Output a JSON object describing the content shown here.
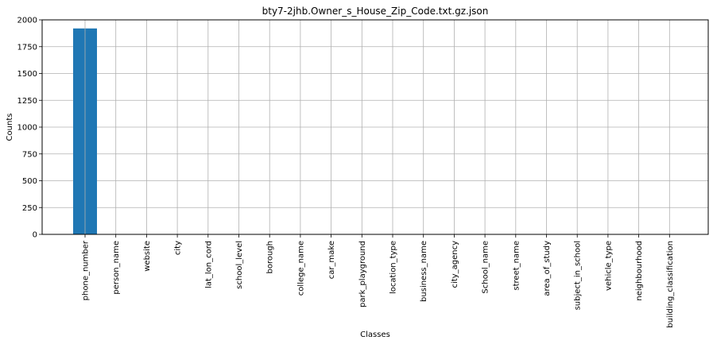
{
  "chart_data": {
    "type": "bar",
    "title": "bty7-2jhb.Owner_s_House_Zip_Code.txt.gz.json",
    "xlabel": "Classes",
    "ylabel": "Counts",
    "categories": [
      "phone_number",
      "person_name",
      "website",
      "city",
      "lat_lon_cord",
      "school_level",
      "borough",
      "college_name",
      "car_make",
      "park_playground",
      "location_type",
      "business_name",
      "city_agency",
      "School_name",
      "street_name",
      "area_of_study",
      "subject_in_school",
      "vehicle_type",
      "neighbourhood",
      "building_classification"
    ],
    "values": [
      1920,
      0,
      0,
      0,
      0,
      0,
      0,
      0,
      0,
      0,
      0,
      0,
      0,
      0,
      0,
      0,
      0,
      0,
      0,
      0
    ],
    "ylim": [
      0,
      2000
    ],
    "yticks": [
      0,
      250,
      500,
      750,
      1000,
      1250,
      1500,
      1750,
      2000
    ],
    "grid": true,
    "bar_color": "#1f77b4"
  }
}
